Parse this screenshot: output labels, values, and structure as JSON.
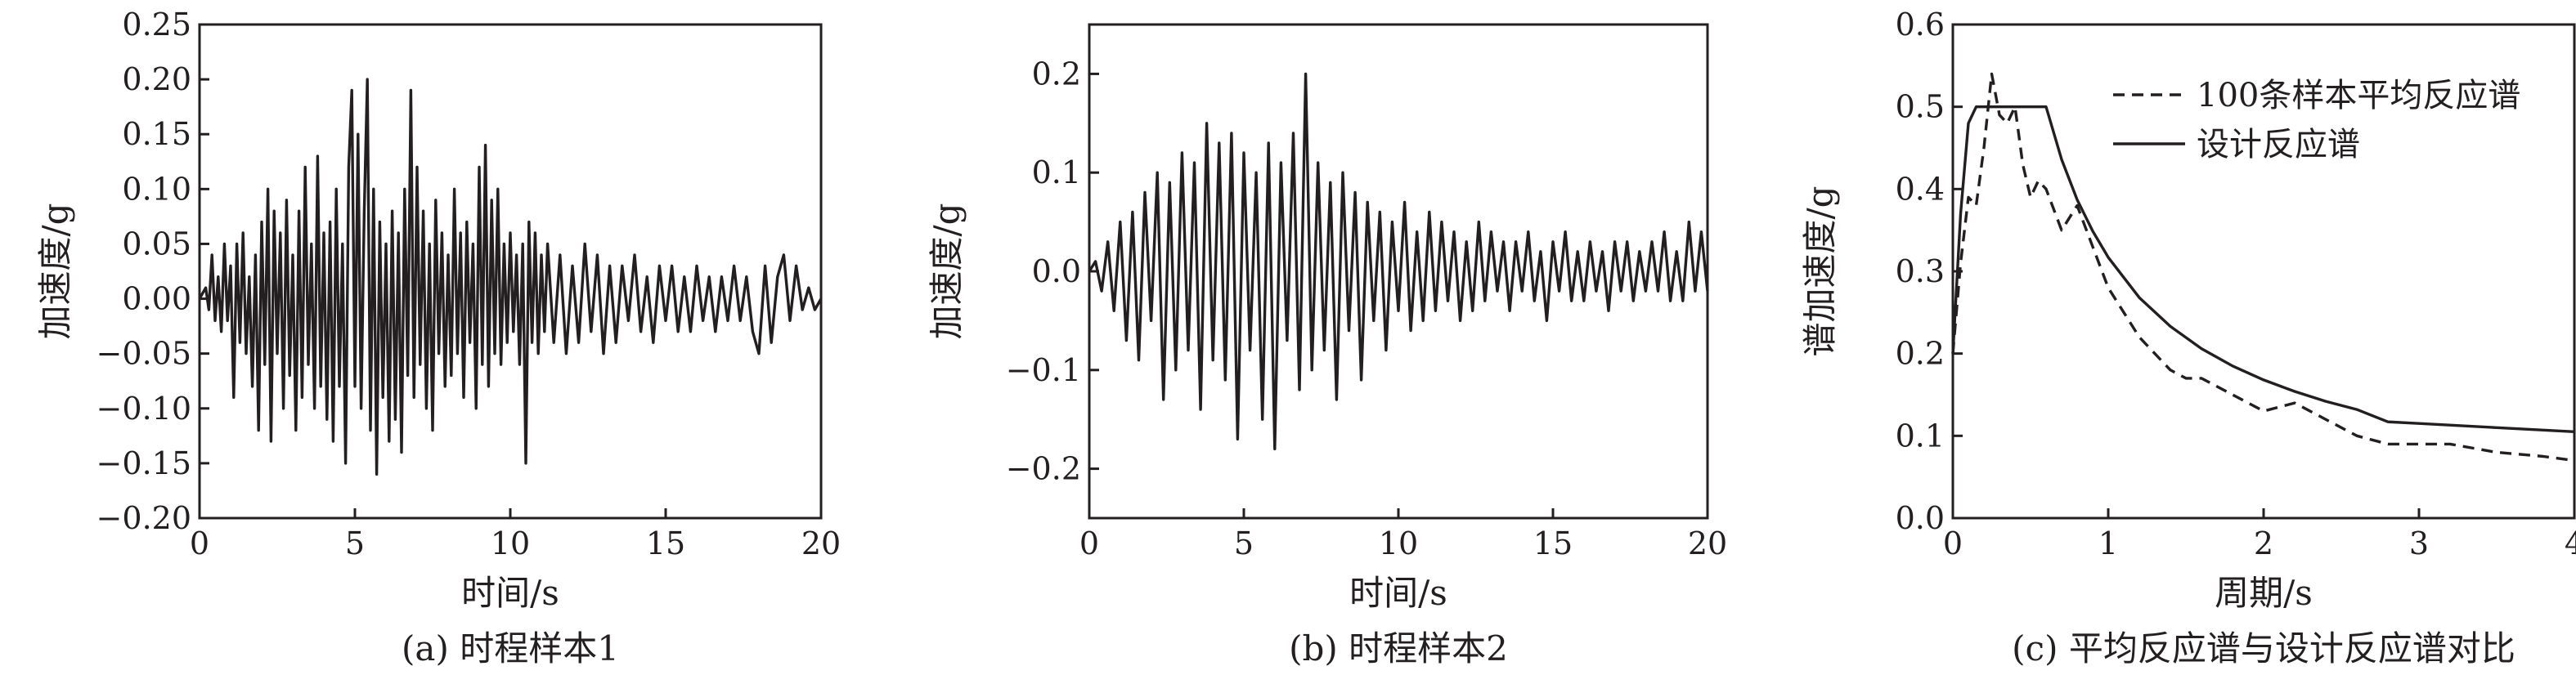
{
  "chart_data": [
    {
      "type": "line",
      "caption": "(a) 时程样本1",
      "xlabel": "时间/s",
      "ylabel": "加速度/g",
      "xlim": [
        0,
        20
      ],
      "ylim": [
        -0.2,
        0.25
      ],
      "xticks": [
        0,
        5,
        10,
        15,
        20
      ],
      "yticks": [
        -0.2,
        -0.15,
        -0.1,
        -0.05,
        0.0,
        0.05,
        0.1,
        0.15,
        0.2,
        0.25
      ],
      "ytick_labels": [
        "−0.20",
        "−0.15",
        "−0.10",
        "−0.05",
        "0.00",
        "0.05",
        "0.10",
        "0.15",
        "0.20",
        "0.25"
      ],
      "xtick_labels": [
        "0",
        "5",
        "10",
        "15",
        "20"
      ],
      "series": [
        {
          "style": "solid",
          "x": [
            0,
            0.2,
            0.3,
            0.4,
            0.5,
            0.6,
            0.7,
            0.8,
            0.9,
            1.0,
            1.1,
            1.2,
            1.3,
            1.4,
            1.5,
            1.6,
            1.7,
            1.8,
            1.9,
            2.0,
            2.1,
            2.2,
            2.3,
            2.4,
            2.5,
            2.6,
            2.7,
            2.8,
            2.9,
            3.0,
            3.1,
            3.2,
            3.3,
            3.4,
            3.5,
            3.6,
            3.7,
            3.8,
            3.9,
            4.0,
            4.1,
            4.2,
            4.3,
            4.4,
            4.5,
            4.6,
            4.7,
            4.8,
            4.9,
            5.0,
            5.1,
            5.2,
            5.3,
            5.4,
            5.5,
            5.6,
            5.7,
            5.8,
            5.9,
            6.0,
            6.1,
            6.2,
            6.3,
            6.4,
            6.5,
            6.6,
            6.7,
            6.8,
            6.9,
            7.0,
            7.1,
            7.2,
            7.3,
            7.4,
            7.5,
            7.6,
            7.7,
            7.8,
            7.9,
            8.0,
            8.1,
            8.2,
            8.3,
            8.4,
            8.5,
            8.6,
            8.7,
            8.8,
            8.9,
            9.0,
            9.1,
            9.2,
            9.3,
            9.4,
            9.5,
            9.6,
            9.7,
            9.8,
            9.9,
            10.0,
            10.1,
            10.2,
            10.3,
            10.4,
            10.5,
            10.6,
            10.7,
            10.8,
            10.9,
            11.0,
            11.1,
            11.2,
            11.4,
            11.6,
            11.8,
            12.0,
            12.2,
            12.4,
            12.6,
            12.8,
            13.0,
            13.2,
            13.4,
            13.6,
            13.8,
            14.0,
            14.2,
            14.4,
            14.6,
            14.8,
            15.0,
            15.2,
            15.4,
            15.6,
            15.8,
            16.0,
            16.2,
            16.4,
            16.6,
            16.8,
            17.0,
            17.2,
            17.4,
            17.6,
            17.8,
            18.0,
            18.2,
            18.4,
            18.6,
            18.8,
            19.0,
            19.2,
            19.4,
            19.6,
            19.8,
            20.0
          ],
          "y": [
            0.0,
            0.01,
            -0.01,
            0.04,
            -0.02,
            0.02,
            -0.03,
            0.05,
            -0.02,
            0.03,
            -0.09,
            0.05,
            -0.04,
            0.06,
            -0.05,
            0.02,
            -0.08,
            0.04,
            -0.12,
            0.07,
            -0.06,
            0.1,
            -0.13,
            0.08,
            -0.05,
            0.06,
            -0.1,
            0.09,
            -0.07,
            0.04,
            -0.12,
            0.08,
            -0.09,
            0.12,
            -0.06,
            0.05,
            -0.1,
            0.13,
            -0.08,
            0.06,
            -0.11,
            0.07,
            -0.13,
            0.1,
            -0.08,
            0.05,
            -0.15,
            0.12,
            0.19,
            -0.08,
            0.15,
            -0.1,
            0.08,
            0.2,
            -0.12,
            0.1,
            -0.16,
            0.07,
            -0.09,
            0.05,
            -0.13,
            0.08,
            -0.11,
            0.06,
            -0.14,
            0.1,
            -0.07,
            0.19,
            -0.09,
            0.12,
            -0.06,
            0.08,
            -0.1,
            0.05,
            -0.12,
            0.09,
            -0.05,
            0.06,
            -0.08,
            0.04,
            -0.07,
            0.1,
            -0.05,
            0.06,
            -0.09,
            0.07,
            -0.04,
            0.05,
            -0.1,
            0.12,
            -0.06,
            0.14,
            -0.08,
            0.09,
            -0.05,
            0.1,
            -0.06,
            0.05,
            -0.04,
            0.06,
            -0.03,
            0.04,
            -0.06,
            0.05,
            -0.15,
            0.07,
            -0.04,
            0.06,
            -0.05,
            0.04,
            -0.03,
            0.05,
            -0.04,
            0.04,
            -0.05,
            0.03,
            -0.04,
            0.05,
            -0.03,
            0.04,
            -0.05,
            0.03,
            -0.04,
            0.03,
            -0.02,
            0.04,
            -0.03,
            0.02,
            -0.04,
            0.03,
            -0.02,
            0.03,
            -0.03,
            0.02,
            -0.03,
            0.03,
            -0.02,
            0.02,
            -0.03,
            0.02,
            -0.02,
            0.03,
            -0.02,
            0.02,
            -0.03,
            -0.05,
            0.03,
            -0.04,
            0.02,
            0.04,
            -0.02,
            0.03,
            -0.01,
            0.01,
            -0.01,
            0.0
          ]
        }
      ]
    },
    {
      "type": "line",
      "caption": "(b) 时程样本2",
      "xlabel": "时间/s",
      "ylabel": "加速度/g",
      "xlim": [
        0,
        20
      ],
      "ylim": [
        -0.25,
        0.25
      ],
      "xticks": [
        0,
        5,
        10,
        15,
        20
      ],
      "yticks": [
        -0.2,
        -0.1,
        0.0,
        0.1,
        0.2
      ],
      "ytick_labels": [
        "−0.2",
        "−0.1",
        "0.0",
        "0.1",
        "0.2"
      ],
      "xtick_labels": [
        "0",
        "5",
        "10",
        "15",
        "20"
      ],
      "series": [
        {
          "style": "solid",
          "x": [
            0,
            0.2,
            0.4,
            0.6,
            0.8,
            1.0,
            1.2,
            1.4,
            1.6,
            1.8,
            2.0,
            2.2,
            2.4,
            2.6,
            2.8,
            3.0,
            3.2,
            3.4,
            3.6,
            3.8,
            4.0,
            4.2,
            4.4,
            4.6,
            4.8,
            5.0,
            5.2,
            5.4,
            5.6,
            5.8,
            6.0,
            6.2,
            6.4,
            6.6,
            6.8,
            7.0,
            7.2,
            7.4,
            7.6,
            7.8,
            8.0,
            8.2,
            8.4,
            8.6,
            8.8,
            9.0,
            9.2,
            9.4,
            9.6,
            9.8,
            10.0,
            10.2,
            10.4,
            10.6,
            10.8,
            11.0,
            11.2,
            11.4,
            11.6,
            11.8,
            12.0,
            12.2,
            12.4,
            12.6,
            12.8,
            13.0,
            13.2,
            13.4,
            13.6,
            13.8,
            14.0,
            14.2,
            14.4,
            14.6,
            14.8,
            15.0,
            15.2,
            15.4,
            15.6,
            15.8,
            16.0,
            16.2,
            16.4,
            16.6,
            16.8,
            17.0,
            17.2,
            17.4,
            17.6,
            17.8,
            18.0,
            18.2,
            18.4,
            18.6,
            18.8,
            19.0,
            19.2,
            19.4,
            19.6,
            19.8,
            20.0
          ],
          "y": [
            0.0,
            0.01,
            -0.02,
            0.03,
            -0.04,
            0.05,
            -0.07,
            0.06,
            -0.09,
            0.08,
            -0.05,
            0.1,
            -0.13,
            0.09,
            -0.1,
            0.12,
            -0.08,
            0.11,
            -0.14,
            0.15,
            -0.09,
            0.13,
            -0.11,
            0.14,
            -0.17,
            0.12,
            -0.08,
            0.1,
            -0.15,
            0.13,
            -0.18,
            0.11,
            -0.07,
            0.14,
            -0.12,
            0.2,
            -0.1,
            0.11,
            -0.08,
            0.09,
            -0.13,
            0.1,
            -0.06,
            0.08,
            -0.11,
            0.07,
            -0.05,
            0.06,
            -0.08,
            0.05,
            -0.04,
            0.07,
            -0.06,
            0.04,
            -0.05,
            0.06,
            -0.04,
            0.05,
            -0.03,
            0.04,
            -0.05,
            0.03,
            -0.04,
            0.05,
            -0.03,
            0.04,
            -0.02,
            0.03,
            -0.04,
            0.03,
            -0.02,
            0.04,
            -0.03,
            0.02,
            -0.05,
            0.03,
            -0.02,
            0.04,
            -0.03,
            0.02,
            -0.03,
            0.03,
            -0.02,
            0.02,
            -0.04,
            0.03,
            -0.02,
            0.03,
            -0.03,
            0.02,
            -0.02,
            0.03,
            -0.02,
            0.04,
            -0.03,
            0.02,
            -0.03,
            0.05,
            -0.02,
            0.04,
            -0.02
          ]
        }
      ]
    },
    {
      "type": "line",
      "caption": "(c) 平均反应谱与设计反应谱对比",
      "xlabel": "周期/s",
      "ylabel": "谱加速度/g",
      "xlim": [
        0,
        4
      ],
      "ylim": [
        0,
        0.6
      ],
      "xticks": [
        0,
        1,
        2,
        3,
        4
      ],
      "yticks": [
        0.0,
        0.1,
        0.2,
        0.3,
        0.4,
        0.5,
        0.6
      ],
      "ytick_labels": [
        "0.0",
        "0.1",
        "0.2",
        "0.3",
        "0.4",
        "0.5",
        "0.6"
      ],
      "xtick_labels": [
        "0",
        "1",
        "2",
        "3",
        "4"
      ],
      "legend": "top-right",
      "series": [
        {
          "name": "100条样本平均反应谱",
          "style": "dashed",
          "x": [
            0.0,
            0.05,
            0.1,
            0.15,
            0.2,
            0.25,
            0.3,
            0.35,
            0.4,
            0.45,
            0.5,
            0.55,
            0.6,
            0.7,
            0.8,
            0.9,
            1.0,
            1.1,
            1.2,
            1.3,
            1.4,
            1.5,
            1.6,
            1.8,
            2.0,
            2.2,
            2.4,
            2.6,
            2.8,
            3.0,
            3.2,
            3.5,
            3.8,
            4.0
          ],
          "y": [
            0.2,
            0.31,
            0.39,
            0.38,
            0.45,
            0.54,
            0.49,
            0.48,
            0.5,
            0.43,
            0.39,
            0.41,
            0.4,
            0.35,
            0.38,
            0.33,
            0.28,
            0.25,
            0.22,
            0.2,
            0.18,
            0.17,
            0.17,
            0.15,
            0.13,
            0.14,
            0.12,
            0.1,
            0.09,
            0.09,
            0.09,
            0.08,
            0.075,
            0.07
          ]
        },
        {
          "name": "设计反应谱",
          "style": "solid",
          "x": [
            0.0,
            0.05,
            0.1,
            0.15,
            0.6,
            0.7,
            0.8,
            0.9,
            1.0,
            1.2,
            1.4,
            1.6,
            1.8,
            2.0,
            2.2,
            2.4,
            2.6,
            2.8,
            3.0,
            3.5,
            4.0
          ],
          "y": [
            0.2,
            0.37,
            0.48,
            0.5,
            0.5,
            0.436,
            0.387,
            0.349,
            0.317,
            0.268,
            0.233,
            0.206,
            0.185,
            0.168,
            0.154,
            0.142,
            0.132,
            0.117,
            0.115,
            0.11,
            0.105
          ]
        }
      ]
    }
  ]
}
